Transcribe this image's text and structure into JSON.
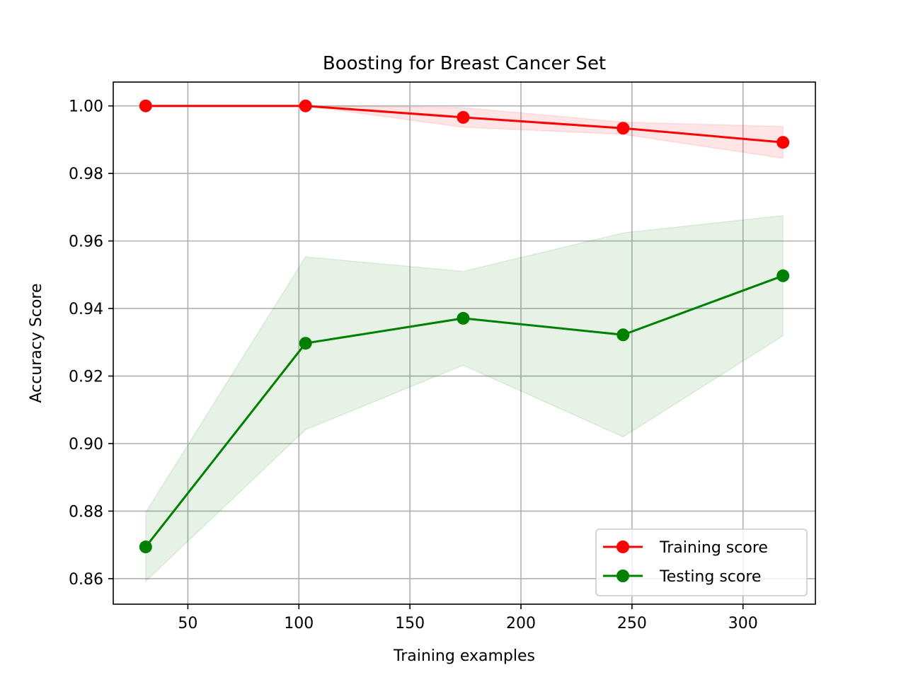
{
  "chart_data": {
    "type": "line",
    "title": "Boosting for Breast Cancer Set",
    "xlabel": "Training examples",
    "ylabel": "Accuracy Score",
    "xlim": [
      16.4,
      332.6
    ],
    "ylim": [
      0.85244,
      1.00706
    ],
    "x": [
      31,
      103,
      174,
      246,
      318
    ],
    "x_ticks": [
      50,
      100,
      150,
      200,
      250,
      300
    ],
    "x_tick_labels": [
      "50",
      "100",
      "150",
      "200",
      "250",
      "300"
    ],
    "y_ticks": [
      0.86,
      0.88,
      0.9,
      0.92,
      0.94,
      0.96,
      0.98,
      1.0
    ],
    "y_tick_labels": [
      "0.86",
      "0.88",
      "0.90",
      "0.92",
      "0.94",
      "0.96",
      "0.98",
      "1.00"
    ],
    "grid": true,
    "legend_position": "lower-right",
    "series": [
      {
        "name": "Training score",
        "color": "#ff0000",
        "values": [
          1.0,
          1.0,
          0.9966,
          0.9934,
          0.9892
        ],
        "band_lower": [
          1.0,
          1.0,
          0.9937,
          0.9916,
          0.9845
        ],
        "band_upper": [
          1.0,
          1.0,
          0.9995,
          0.9952,
          0.9939
        ],
        "band_color": "#ff0000",
        "band_opacity": 0.1
      },
      {
        "name": "Testing score",
        "color": "#008000",
        "values": [
          0.8694,
          0.9297,
          0.9371,
          0.9322,
          0.9497
        ],
        "band_lower": [
          0.8592,
          0.9041,
          0.9232,
          0.902,
          0.9319
        ],
        "band_upper": [
          0.8796,
          0.9553,
          0.951,
          0.9624,
          0.9675
        ],
        "band_color": "#008000",
        "band_opacity": 0.1
      }
    ]
  }
}
